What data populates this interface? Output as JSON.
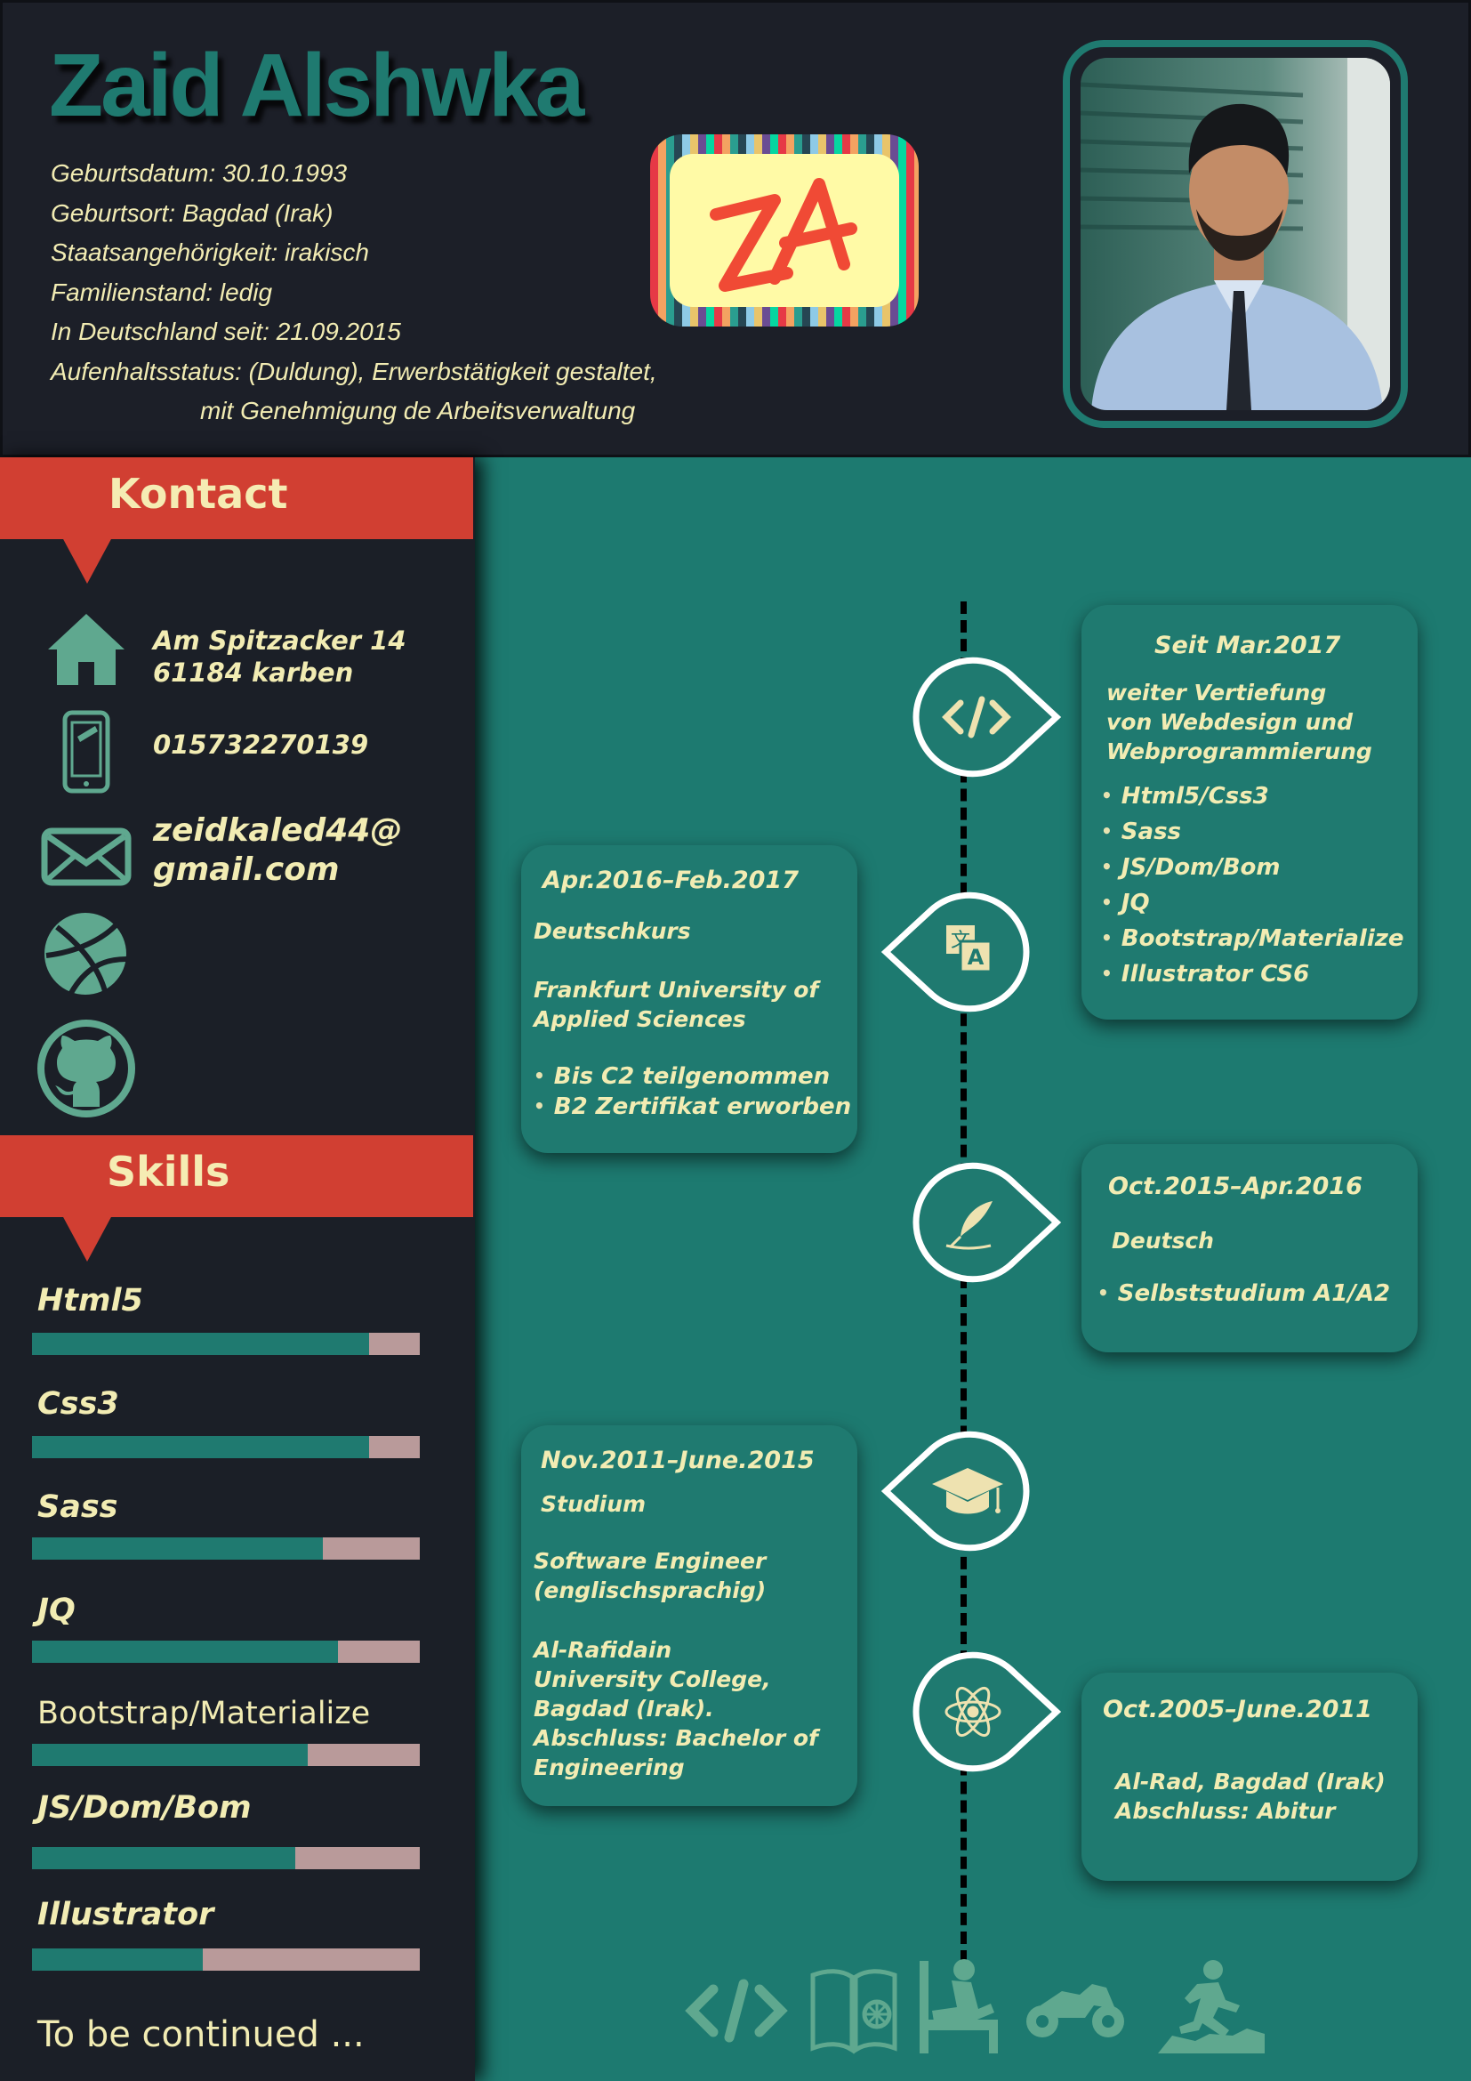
{
  "header": {
    "name": "Zaid Alshwka",
    "personal": [
      "Geburtsdatum: 30.10.1993",
      "Geburtsort: Bagdad (Irak)",
      "Staatsangehörigkeit: irakisch",
      "Familienstand: ledig",
      "In Deutschland seit: 21.09.2015",
      "Aufenhaltsstatus: (Duldung), Erwerbstätigkeit gestaltet,",
      "mit Genehmigung de Arbeitsverwaltung"
    ],
    "logo_text": "ZA",
    "colors": {
      "accent": "#1f7a70",
      "text": "#f2ecb3",
      "dark": "#1c1f28"
    }
  },
  "contact": {
    "title": "Kontact",
    "address_line1": "Am Spitzacker 14",
    "address_line2": "61184 karben",
    "phone": "015732270139",
    "email_line1": "zeidkaled44@",
    "email_line2": "gmail.com",
    "icons": [
      "home-icon",
      "phone-icon",
      "mail-icon",
      "dribbble-icon",
      "github-icon"
    ]
  },
  "skills": {
    "title": "Skills",
    "items": [
      {
        "label": "Html5",
        "level": 0.87
      },
      {
        "label": "Css3",
        "level": 0.87
      },
      {
        "label": "Sass",
        "level": 0.75
      },
      {
        "label": "JQ",
        "level": 0.79
      },
      {
        "label": "Bootstrap/Materialize",
        "level": 0.71
      },
      {
        "label": "JS/Dom/Bom",
        "level": 0.68
      },
      {
        "label": "Illustrator",
        "level": 0.44
      }
    ],
    "footer": "To be continued ..."
  },
  "timeline": {
    "entries": [
      {
        "date": "Seit Mar.2017",
        "lines": [
          "weiter Vertiefung",
          "von Webdesign und",
          "Webprogrammierung"
        ],
        "bullets": [
          "Html5/Css3",
          "Sass",
          "JS/Dom/Bom",
          "JQ",
          "Bootstrap/Materialize",
          "Illustrator CS6"
        ],
        "icon": "code-icon"
      },
      {
        "date": "Apr.2016–Feb.2017",
        "title": "Deutschkurs",
        "lines": [
          "Frankfurt University of",
          "Applied Sciences"
        ],
        "bullets": [
          "Bis C2 teilgenommen",
          "B2 Zertifikat erworben"
        ],
        "icon": "translate-icon"
      },
      {
        "date": "Oct.2015–Apr.2016",
        "title": "Deutsch",
        "bullets": [
          "Selbststudium A1/A2"
        ],
        "icon": "quill-icon"
      },
      {
        "date": "Nov.2011–June.2015",
        "title": "Studium",
        "lines": [
          "Software Engineer",
          "(englischsprachig)"
        ],
        "lines2": [
          "Al-Rafidain",
          "University College,",
          "Bagdad (Irak).",
          "Abschluss: Bachelor of",
          "Engineering"
        ],
        "icon": "graduation-cap-icon"
      },
      {
        "date": "Oct.2005–June.2011",
        "lines": [
          "Al-Rad, Bagdad (Irak)",
          "Abschluss: Abitur"
        ],
        "icon": "atom-icon"
      }
    ]
  },
  "hobbies": [
    "code-icon",
    "book-icon",
    "massage-icon",
    "motorcycle-icon",
    "running-icon"
  ]
}
